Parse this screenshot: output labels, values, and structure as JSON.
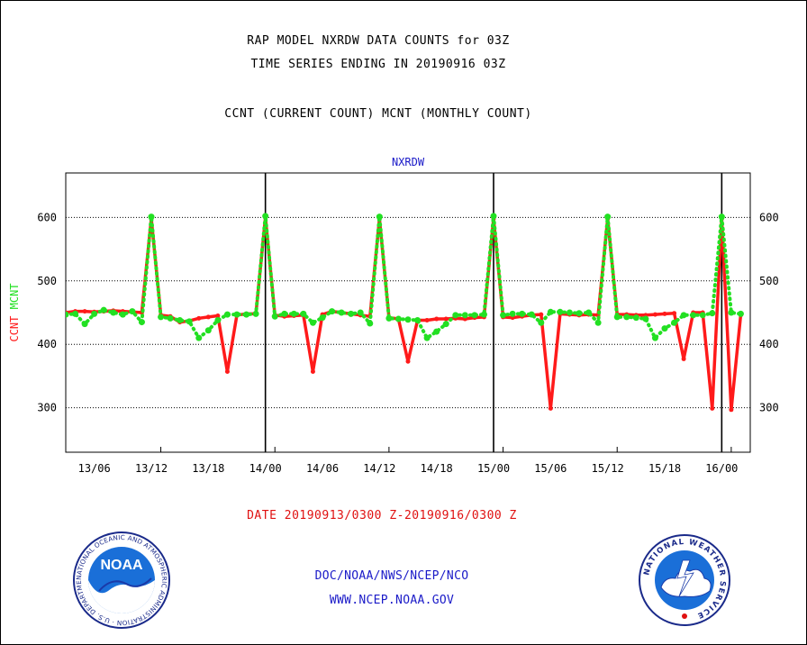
{
  "header": {
    "title_line1": "RAP MODEL NXRDW DATA COUNTS for 03Z",
    "title_line2": "TIME SERIES ENDING IN 20190916 03Z",
    "title_line3": "CCNT (CURRENT COUNT) MCNT (MONTHLY COUNT)"
  },
  "footer": {
    "date_range": "DATE 20190913/0300 Z-20190916/0300 Z",
    "org_line": "DOC/NOAA/NWS/NCEP/NCO",
    "url_line": "WWW.NCEP.NOAA.GOV"
  },
  "logos": {
    "noaa_text": "NOAA",
    "noaa_ring_text": "NATIONAL OCEANIC AND ATMOSPHERIC ADMINISTRATION · U.S. DEPARTMENT OF COMMERCE",
    "nws_ring_text": "NATIONAL WEATHER SERVICE"
  },
  "colors": {
    "ccnt": "#ff1a1a",
    "mcnt": "#22e022",
    "plot_title": "#1a1ac8",
    "date_text": "#e01010",
    "footer_text": "#1a1ac8"
  },
  "chart_data": {
    "type": "line",
    "title": "NXRDW",
    "ylabel_parts": [
      {
        "text": "CCNT",
        "color": "#ff1a1a"
      },
      {
        "text": "MCNT",
        "color": "#22e022"
      }
    ],
    "xlim": [
      -1,
      71
    ],
    "ylim": [
      230,
      670
    ],
    "yticks": [
      300,
      400,
      500,
      600
    ],
    "grid": "horizontal dotted",
    "x_tick_positions": [
      9,
      21,
      33,
      45,
      57,
      69
    ],
    "xticks": [
      {
        "x": 2,
        "label": "13/06"
      },
      {
        "x": 8,
        "label": "13/12"
      },
      {
        "x": 14,
        "label": "13/18"
      },
      {
        "x": 20,
        "label": "14/00"
      },
      {
        "x": 26,
        "label": "14/06"
      },
      {
        "x": 32,
        "label": "14/12"
      },
      {
        "x": 38,
        "label": "14/18"
      },
      {
        "x": 44,
        "label": "15/00"
      },
      {
        "x": 50,
        "label": "15/06"
      },
      {
        "x": 56,
        "label": "15/12"
      },
      {
        "x": 62,
        "label": "15/18"
      },
      {
        "x": 68,
        "label": "16/00"
      }
    ],
    "day_boundaries": [
      20,
      44,
      68
    ],
    "series": [
      {
        "name": "CCNT",
        "values": [
          [
            -1,
            450
          ],
          [
            0,
            452
          ],
          [
            1,
            452
          ],
          [
            2,
            451
          ],
          [
            3,
            452
          ],
          [
            4,
            453
          ],
          [
            5,
            452
          ],
          [
            6,
            451
          ],
          [
            7,
            450
          ],
          [
            8,
            598
          ],
          [
            9,
            446
          ],
          [
            10,
            444
          ],
          [
            11,
            435
          ],
          [
            12,
            437
          ],
          [
            13,
            441
          ],
          [
            14,
            443
          ],
          [
            15,
            445
          ],
          [
            16,
            357
          ],
          [
            17,
            446
          ],
          [
            18,
            448
          ],
          [
            19,
            448
          ],
          [
            20,
            600
          ],
          [
            21,
            446
          ],
          [
            22,
            444
          ],
          [
            23,
            445
          ],
          [
            24,
            446
          ],
          [
            25,
            357
          ],
          [
            26,
            447
          ],
          [
            27,
            452
          ],
          [
            28,
            450
          ],
          [
            29,
            448
          ],
          [
            30,
            446
          ],
          [
            31,
            444
          ],
          [
            32,
            598
          ],
          [
            33,
            442
          ],
          [
            34,
            440
          ],
          [
            35,
            373
          ],
          [
            36,
            438
          ],
          [
            37,
            438
          ],
          [
            38,
            440
          ],
          [
            39,
            440
          ],
          [
            40,
            441
          ],
          [
            41,
            440
          ],
          [
            42,
            442
          ],
          [
            43,
            443
          ],
          [
            44,
            598
          ],
          [
            45,
            443
          ],
          [
            46,
            442
          ],
          [
            47,
            444
          ],
          [
            48,
            446
          ],
          [
            49,
            447
          ],
          [
            50,
            299
          ],
          [
            51,
            448
          ],
          [
            52,
            447
          ],
          [
            53,
            446
          ],
          [
            54,
            447
          ],
          [
            55,
            446
          ],
          [
            56,
            598
          ],
          [
            57,
            447
          ],
          [
            58,
            447
          ],
          [
            59,
            446
          ],
          [
            60,
            446
          ],
          [
            61,
            447
          ],
          [
            62,
            448
          ],
          [
            63,
            449
          ],
          [
            64,
            377
          ],
          [
            65,
            450
          ],
          [
            66,
            450
          ],
          [
            67,
            299
          ],
          [
            68,
            598
          ],
          [
            69,
            297
          ],
          [
            70,
            446
          ]
        ]
      },
      {
        "name": "MCNT",
        "values": [
          [
            -1,
            447
          ],
          [
            0,
            448
          ],
          [
            1,
            432
          ],
          [
            2,
            448
          ],
          [
            3,
            454
          ],
          [
            4,
            450
          ],
          [
            5,
            447
          ],
          [
            6,
            452
          ],
          [
            7,
            435
          ],
          [
            8,
            601
          ],
          [
            9,
            443
          ],
          [
            10,
            441
          ],
          [
            11,
            438
          ],
          [
            12,
            436
          ],
          [
            13,
            410
          ],
          [
            14,
            422
          ],
          [
            15,
            438
          ],
          [
            16,
            447
          ],
          [
            17,
            447
          ],
          [
            18,
            447
          ],
          [
            19,
            448
          ],
          [
            20,
            602
          ],
          [
            21,
            444
          ],
          [
            22,
            448
          ],
          [
            23,
            448
          ],
          [
            24,
            448
          ],
          [
            25,
            434
          ],
          [
            26,
            442
          ],
          [
            27,
            452
          ],
          [
            28,
            450
          ],
          [
            29,
            448
          ],
          [
            30,
            450
          ],
          [
            31,
            433
          ],
          [
            32,
            601
          ],
          [
            33,
            441
          ],
          [
            34,
            440
          ],
          [
            35,
            439
          ],
          [
            36,
            438
          ],
          [
            37,
            410
          ],
          [
            38,
            420
          ],
          [
            39,
            432
          ],
          [
            40,
            446
          ],
          [
            41,
            446
          ],
          [
            42,
            446
          ],
          [
            43,
            447
          ],
          [
            44,
            602
          ],
          [
            45,
            446
          ],
          [
            46,
            448
          ],
          [
            47,
            448
          ],
          [
            48,
            447
          ],
          [
            49,
            434
          ],
          [
            50,
            451
          ],
          [
            51,
            451
          ],
          [
            52,
            450
          ],
          [
            53,
            449
          ],
          [
            54,
            450
          ],
          [
            55,
            434
          ],
          [
            56,
            601
          ],
          [
            57,
            443
          ],
          [
            58,
            443
          ],
          [
            59,
            442
          ],
          [
            60,
            440
          ],
          [
            61,
            410
          ],
          [
            62,
            425
          ],
          [
            63,
            434
          ],
          [
            64,
            446
          ],
          [
            65,
            446
          ],
          [
            66,
            446
          ],
          [
            67,
            449
          ],
          [
            68,
            601
          ],
          [
            69,
            450
          ],
          [
            70,
            448
          ]
        ]
      }
    ]
  }
}
